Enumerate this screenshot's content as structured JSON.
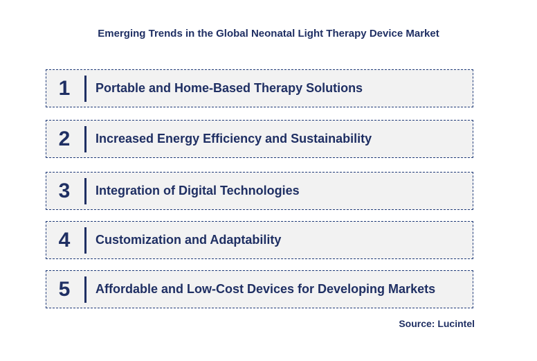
{
  "title": "Emerging Trends in the Global Neonatal Light Therapy Device Market",
  "trends": [
    {
      "number": "1",
      "label": "Portable and Home-Based Therapy Solutions"
    },
    {
      "number": "2",
      "label": "Increased Energy Efficiency and Sustainability"
    },
    {
      "number": "3",
      "label": "Integration of Digital Technologies"
    },
    {
      "number": "4",
      "label": "Customization and Adaptability"
    },
    {
      "number": "5",
      "label": "Affordable and Low-Cost Devices for Developing Markets"
    }
  ],
  "source": "Source: Lucintel",
  "colors": {
    "text": "#1f2f63",
    "box_fill": "#f2f2f2",
    "box_border": "#1f3a78"
  }
}
